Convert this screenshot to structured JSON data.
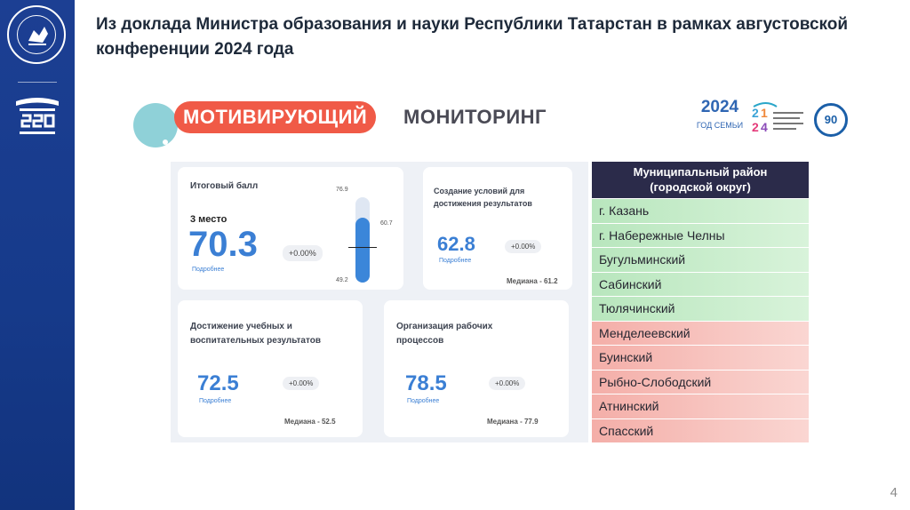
{
  "slide": {
    "title": "Из доклада Министра образования и науки Республики Татарстан в рамках августовской конференции 2024 года",
    "page_number": "4"
  },
  "colors": {
    "sidebar": "#1c3f93",
    "brand_pill": "#f05a47",
    "brand_circle": "#8fd1d8",
    "value_blue": "#3b7fd4",
    "table_header": "#2b2b4a",
    "row_green": "#c6ecc9",
    "row_red": "#f7c3bf"
  },
  "sidebar": {
    "seal_icon": "university-seal-icon",
    "emblem_icon": "220-columns-emblem-icon"
  },
  "report": {
    "brand_word1": "МОТИВИРУЮЩИЙ",
    "brand_word2": "МОНИТОРИНГ",
    "logos": {
      "family_year": "2024",
      "family_caption": "ГОД СЕМЬИ",
      "year24_icon": "year-24-logo-icon",
      "anniversary": "90"
    },
    "cards": {
      "total": {
        "label": "Итоговый балл",
        "rank": "3 место",
        "value": "70.3",
        "link": "Подробнее",
        "chip": "+0.00%",
        "gauge_max": "76.9",
        "gauge_median": "60.7",
        "gauge_min": "49.2",
        "gauge_value": 70.3
      },
      "conditions": {
        "label_line1": "Создание условий для",
        "label_line2": "достижения результатов",
        "value": "62.8",
        "link": "Подробнее",
        "chip": "+0.00%",
        "median": "Медиана - 61.2"
      },
      "achievement": {
        "label_line1": "Достижение учебных и",
        "label_line2": "воспитательных результатов",
        "value": "72.5",
        "link": "Подробнее",
        "chip": "+0.00%",
        "median": "Медиана - 52.5"
      },
      "organization": {
        "label_line1": "Организация рабочих",
        "label_line2": "процессов",
        "value": "78.5",
        "link": "Подробнее",
        "chip": "+0.00%",
        "median": "Медиана - 77.9"
      }
    },
    "table": {
      "header_line1": "Муниципальный район",
      "header_line2": "(городской округ)",
      "rows": [
        {
          "name": "г. Казань",
          "status": "green"
        },
        {
          "name": "г. Набережные Челны",
          "status": "green"
        },
        {
          "name": "Бугульминский",
          "status": "green"
        },
        {
          "name": "Сабинский",
          "status": "green"
        },
        {
          "name": "Тюлячинский",
          "status": "green"
        },
        {
          "name": "Менделеевский",
          "status": "red"
        },
        {
          "name": "Буинский",
          "status": "red"
        },
        {
          "name": "Рыбно-Слободский",
          "status": "red"
        },
        {
          "name": "Атнинский",
          "status": "red"
        },
        {
          "name": "Спасский",
          "status": "red"
        }
      ]
    }
  }
}
